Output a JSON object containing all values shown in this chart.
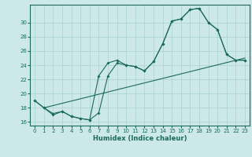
{
  "xlabel": "Humidex (Indice chaleur)",
  "bg_color": "#cce8e8",
  "line_color": "#1a6b5a",
  "xlim": [
    -0.5,
    23.5
  ],
  "ylim": [
    15.5,
    32.5
  ],
  "xticks": [
    0,
    1,
    2,
    3,
    4,
    5,
    6,
    7,
    8,
    9,
    10,
    11,
    12,
    13,
    14,
    15,
    16,
    17,
    18,
    19,
    20,
    21,
    22,
    23
  ],
  "yticks": [
    16,
    18,
    20,
    22,
    24,
    26,
    28,
    30
  ],
  "line_diagonal": {
    "x": [
      1,
      23
    ],
    "y": [
      18.0,
      25.0
    ]
  },
  "line_main": {
    "x": [
      0,
      1,
      2,
      3,
      4,
      5,
      6,
      7,
      8,
      9,
      10,
      11,
      12,
      13,
      14,
      15,
      16,
      17,
      18,
      19,
      20,
      21,
      22,
      23
    ],
    "y": [
      19.0,
      18.0,
      17.0,
      17.5,
      16.8,
      16.5,
      16.3,
      22.5,
      24.3,
      24.7,
      24.0,
      23.8,
      23.2,
      24.5,
      27.0,
      30.2,
      30.5,
      31.8,
      32.0,
      30.0,
      29.0,
      25.5,
      24.7,
      24.7
    ]
  },
  "line_alt": {
    "x": [
      0,
      1,
      2,
      3,
      4,
      5,
      6,
      7,
      8,
      9,
      10,
      11,
      12,
      13,
      14,
      15,
      16,
      17,
      18,
      19,
      20,
      21,
      22,
      23
    ],
    "y": [
      19.0,
      18.0,
      17.2,
      17.5,
      16.8,
      16.5,
      16.3,
      17.3,
      22.5,
      24.3,
      24.0,
      23.8,
      23.2,
      24.5,
      27.0,
      30.2,
      30.5,
      31.8,
      32.0,
      30.0,
      29.0,
      25.5,
      24.7,
      24.7
    ]
  }
}
